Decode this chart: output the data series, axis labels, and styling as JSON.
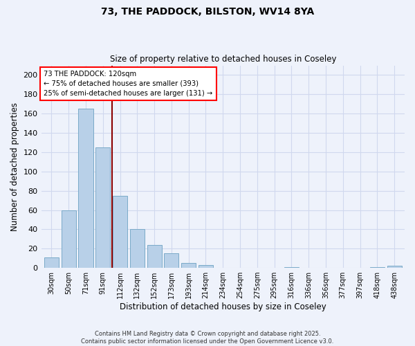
{
  "title": "73, THE PADDOCK, BILSTON, WV14 8YA",
  "subtitle": "Size of property relative to detached houses in Coseley",
  "xlabel": "Distribution of detached houses by size in Coseley",
  "ylabel": "Number of detached properties",
  "bar_color": "#b8d0e8",
  "bar_edge_color": "#7aaac8",
  "categories": [
    "30sqm",
    "50sqm",
    "71sqm",
    "91sqm",
    "112sqm",
    "132sqm",
    "152sqm",
    "173sqm",
    "193sqm",
    "214sqm",
    "234sqm",
    "254sqm",
    "275sqm",
    "295sqm",
    "316sqm",
    "336sqm",
    "356sqm",
    "377sqm",
    "397sqm",
    "418sqm",
    "438sqm"
  ],
  "values": [
    11,
    60,
    165,
    125,
    75,
    40,
    24,
    15,
    5,
    3,
    0,
    0,
    0,
    0,
    1,
    0,
    0,
    0,
    0,
    1,
    2
  ],
  "ylim": [
    0,
    210
  ],
  "yticks": [
    0,
    20,
    40,
    60,
    80,
    100,
    120,
    140,
    160,
    180,
    200
  ],
  "vline_x": 3.55,
  "annotation_text_line1": "73 THE PADDOCK: 120sqm",
  "annotation_text_line2": "← 75% of detached houses are smaller (393)",
  "annotation_text_line3": "25% of semi-detached houses are larger (131) →",
  "bg_color": "#eef2fb",
  "grid_color": "#d0d8ee",
  "footer_line1": "Contains HM Land Registry data © Crown copyright and database right 2025.",
  "footer_line2": "Contains public sector information licensed under the Open Government Licence v3.0."
}
